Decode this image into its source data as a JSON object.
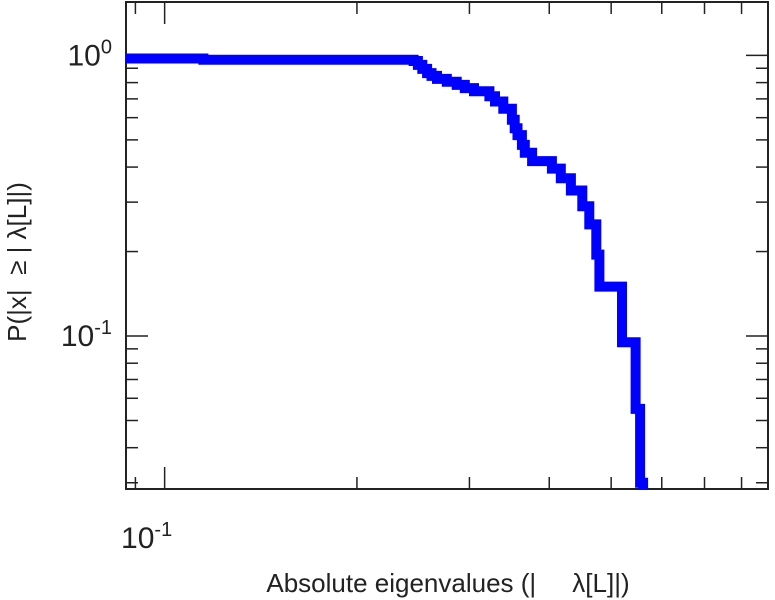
{
  "chart_data": {
    "type": "line",
    "xlabel": "Absolute eigenvalues (|     λ[L]|)",
    "ylabel": "P(|x|  ≥ | λ[L]|)",
    "x_scale": "log",
    "y_scale": "log",
    "xlim": [
      0.087,
      0.88
    ],
    "ylim": [
      0.0285,
      1.55
    ],
    "grid": false,
    "x_ticks": [
      {
        "value": 0.1,
        "base": "10",
        "exp": "-1"
      }
    ],
    "y_ticks": [
      {
        "value": 1,
        "base": "10",
        "exp": "0"
      },
      {
        "value": 0.1,
        "base": "10",
        "exp": "-1"
      }
    ],
    "series": [
      {
        "color": "#0000ff",
        "style": "step",
        "x": [
          0.087,
          0.11,
          0.115,
          0.2453,
          0.2491,
          0.2531,
          0.2575,
          0.2617,
          0.2669,
          0.2765,
          0.2865,
          0.295,
          0.305,
          0.3224,
          0.3289,
          0.339,
          0.3496,
          0.3532,
          0.3568,
          0.3625,
          0.3663,
          0.376,
          0.4039,
          0.417,
          0.4324,
          0.4506,
          0.4622,
          0.474,
          0.4792,
          0.52,
          0.546,
          0.555,
          0.561
        ],
        "y": [
          0.975,
          0.975,
          0.965,
          0.955,
          0.925,
          0.895,
          0.865,
          0.845,
          0.825,
          0.805,
          0.785,
          0.765,
          0.745,
          0.715,
          0.685,
          0.645,
          0.59,
          0.55,
          0.52,
          0.48,
          0.45,
          0.42,
          0.395,
          0.365,
          0.33,
          0.29,
          0.25,
          0.195,
          0.15,
          0.095,
          0.055,
          0.03,
          0.0285
        ]
      }
    ]
  }
}
